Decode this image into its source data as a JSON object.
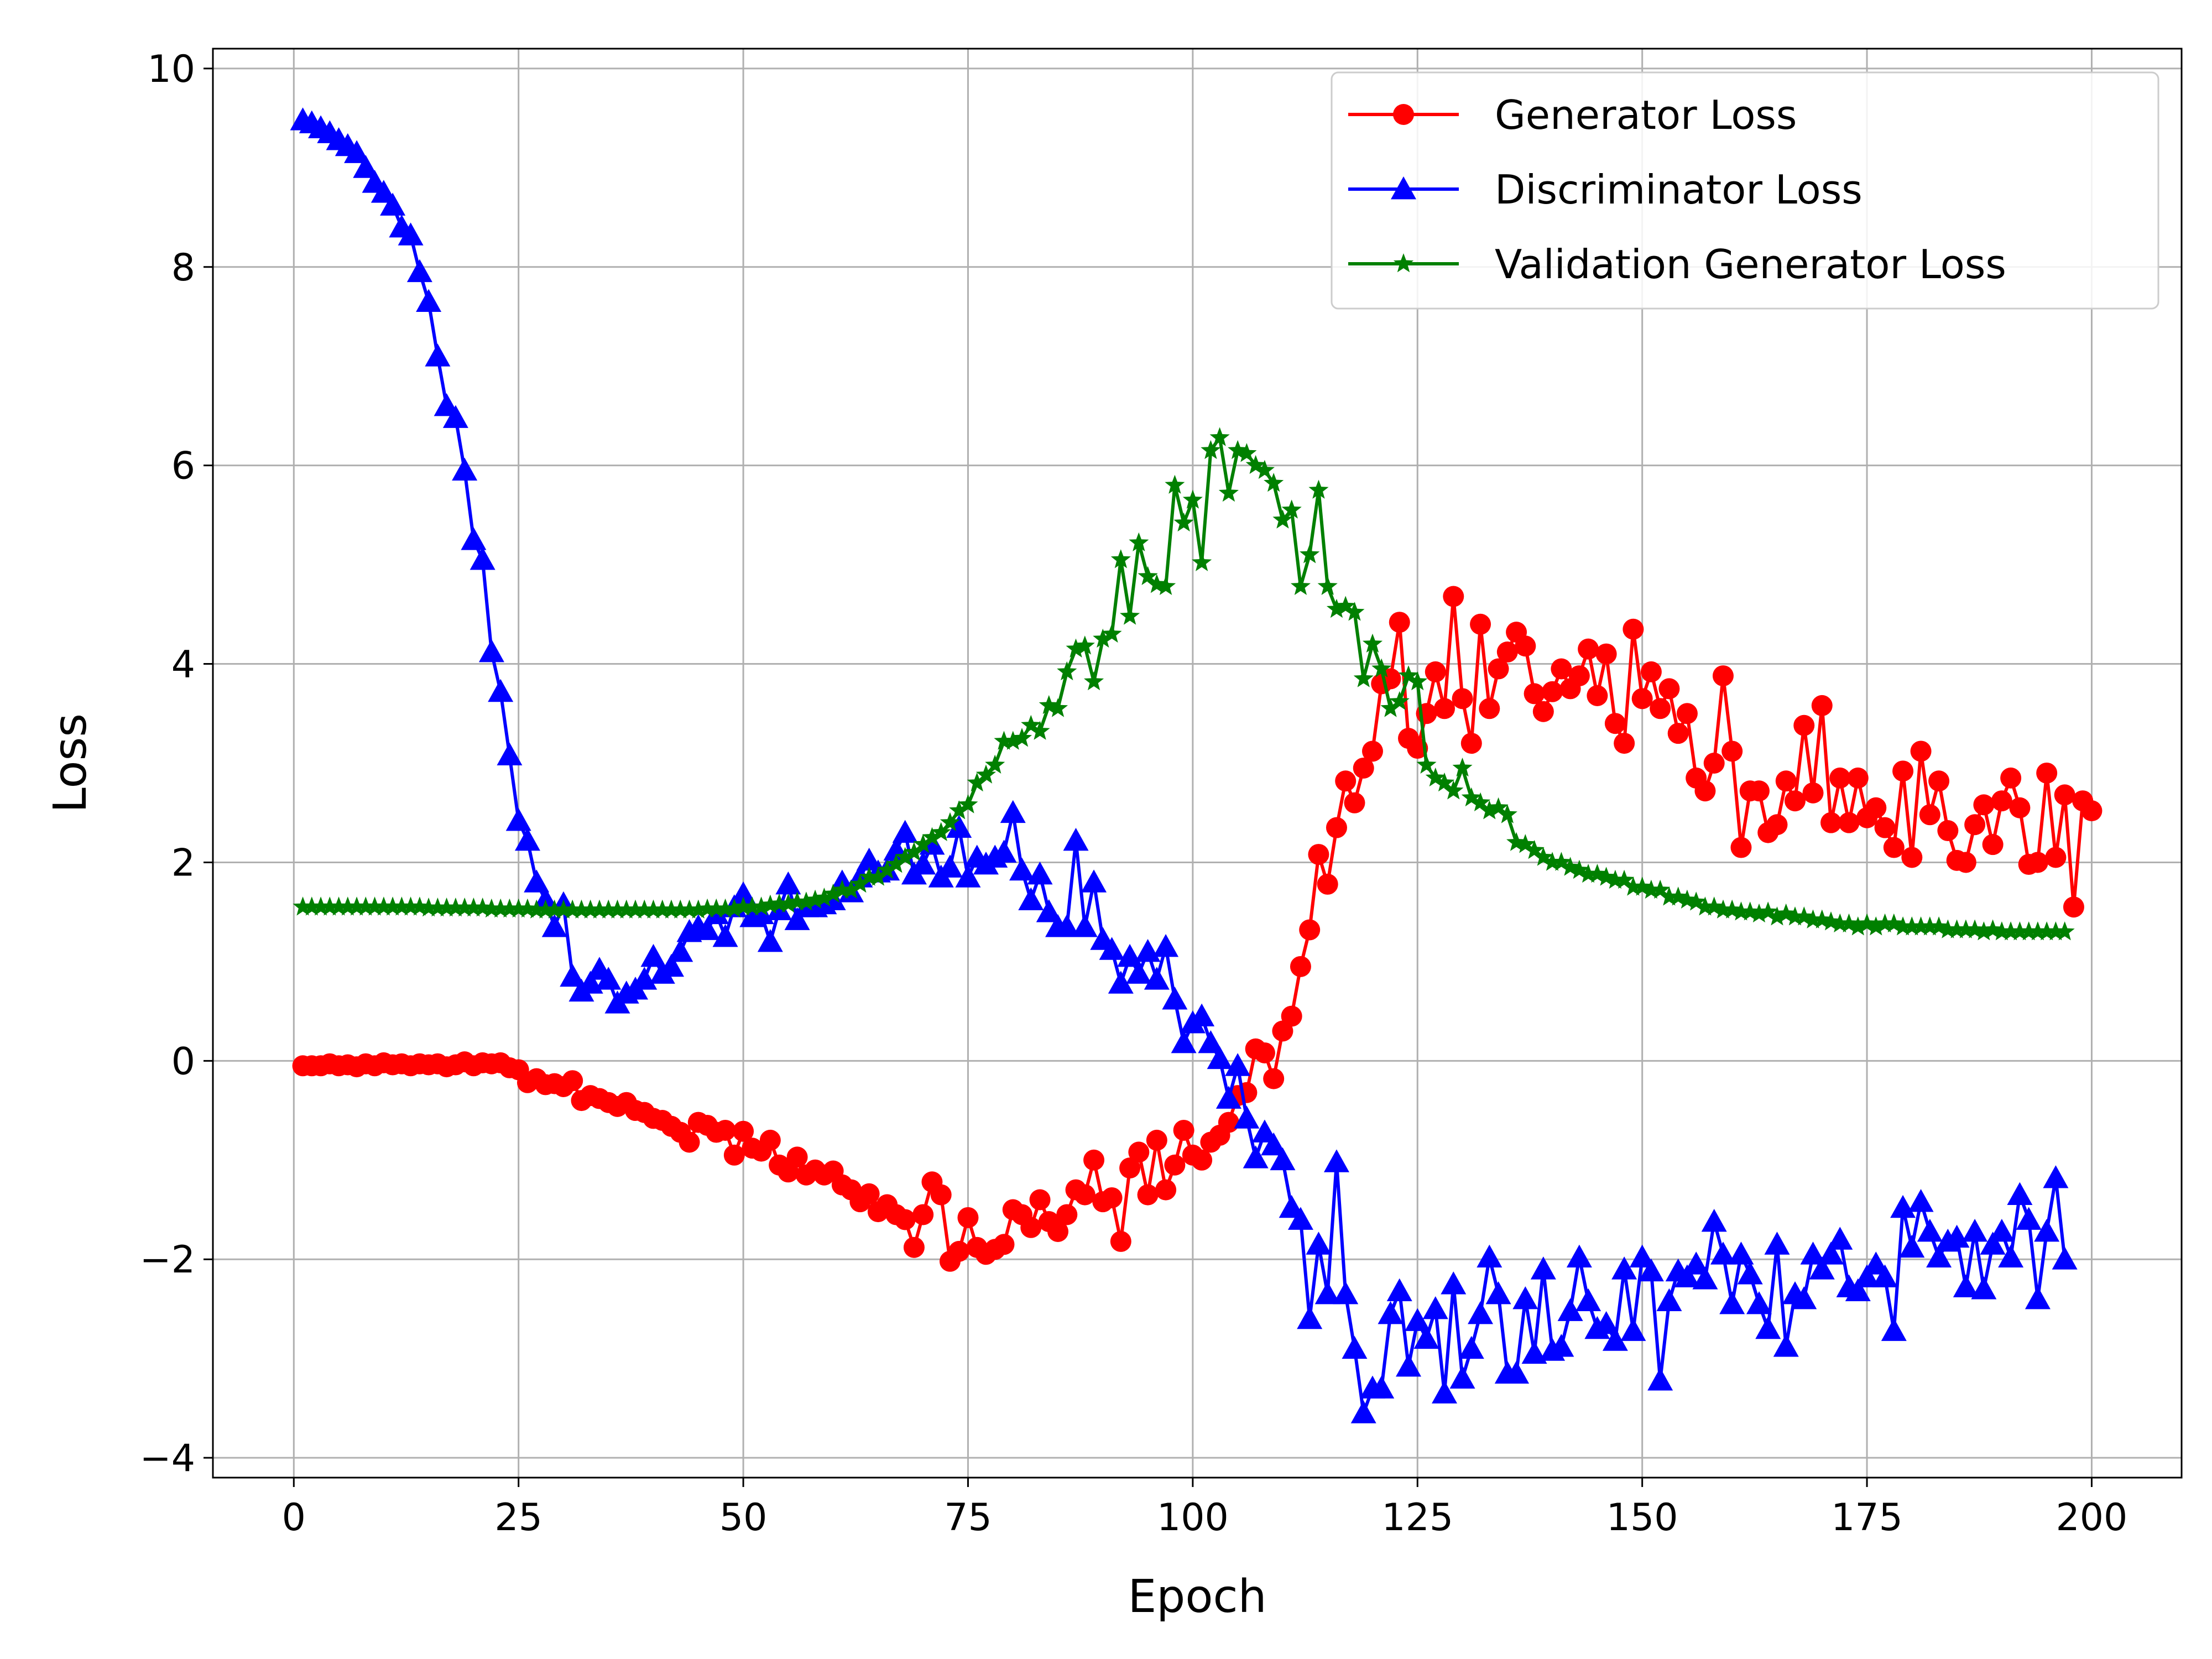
{
  "chart_data": {
    "type": "line",
    "title": "",
    "xlabel": "Epoch",
    "ylabel": "Loss",
    "xlim": [
      -9,
      210
    ],
    "ylim": [
      -4.2,
      10.2
    ],
    "xticks": [
      0,
      25,
      50,
      75,
      100,
      125,
      150,
      175,
      200
    ],
    "yticks": [
      -4,
      -2,
      0,
      2,
      4,
      6,
      8,
      10
    ],
    "grid": true,
    "legend_position": "top-right",
    "series": [
      {
        "name": "Generator Loss",
        "color": "#ff0000",
        "marker": "circle",
        "y": [
          -0.05,
          -0.05,
          -0.05,
          -0.03,
          -0.05,
          -0.04,
          -0.06,
          -0.03,
          -0.05,
          -0.02,
          -0.04,
          -0.03,
          -0.05,
          -0.03,
          -0.04,
          -0.03,
          -0.06,
          -0.04,
          -0.01,
          -0.05,
          -0.02,
          -0.03,
          -0.02,
          -0.07,
          -0.09,
          -0.22,
          -0.18,
          -0.24,
          -0.23,
          -0.26,
          -0.2,
          -0.4,
          -0.35,
          -0.38,
          -0.42,
          -0.46,
          -0.42,
          -0.5,
          -0.52,
          -0.58,
          -0.6,
          -0.66,
          -0.72,
          -0.82,
          -0.62,
          -0.65,
          -0.72,
          -0.7,
          -0.95,
          -0.71,
          -0.88,
          -0.91,
          -0.8,
          -1.05,
          -1.12,
          -0.97,
          -1.15,
          -1.1,
          -1.15,
          -1.11,
          -1.25,
          -1.3,
          -1.42,
          -1.34,
          -1.52,
          -1.45,
          -1.55,
          -1.6,
          -1.88,
          -1.55,
          -1.22,
          -1.35,
          -2.02,
          -1.92,
          -1.58,
          -1.88,
          -1.95,
          -1.9,
          -1.85,
          -1.5,
          -1.55,
          -1.68,
          -1.4,
          -1.62,
          -1.72,
          -1.55,
          -1.3,
          -1.35,
          -1.0,
          -1.42,
          -1.38,
          -1.82,
          -1.08,
          -0.92,
          -1.35,
          -0.8,
          -1.3,
          -1.05,
          -0.7,
          -0.95,
          -1.0,
          -0.82,
          -0.75,
          -0.62,
          -0.35,
          -0.32,
          0.12,
          0.08,
          -0.18,
          0.3,
          0.45,
          0.95,
          1.32,
          2.08,
          1.78,
          2.35,
          2.82,
          2.6,
          2.95,
          3.12,
          3.8,
          3.85,
          4.42,
          3.25,
          3.15,
          3.5,
          3.92,
          3.55,
          4.68,
          3.65,
          3.2,
          4.4,
          3.55,
          3.95,
          4.12,
          4.32,
          4.18,
          3.7,
          3.52,
          3.72,
          3.95,
          3.75,
          3.88,
          4.15,
          3.68,
          4.1,
          3.4,
          3.2,
          4.35,
          3.65,
          3.92,
          3.55,
          3.75,
          3.3,
          3.5,
          2.85,
          2.72,
          3.0,
          3.88,
          3.12,
          2.15,
          2.72,
          2.72,
          2.3,
          2.38,
          2.82,
          2.62,
          3.38,
          2.7,
          3.58,
          2.4,
          2.85,
          2.4,
          2.85,
          2.45,
          2.55,
          2.35,
          2.15,
          2.92,
          2.05,
          3.12,
          2.48,
          2.82,
          2.32,
          2.02,
          2.0,
          2.38,
          2.58,
          2.18,
          2.62,
          2.85,
          2.55,
          1.98,
          2.0,
          2.9,
          2.05,
          2.68,
          1.55,
          2.62,
          2.52
        ]
      },
      {
        "name": "Discriminator Loss",
        "color": "#0000ff",
        "marker": "triangle",
        "y": [
          9.48,
          9.45,
          9.4,
          9.35,
          9.28,
          9.22,
          9.15,
          9.0,
          8.85,
          8.75,
          8.62,
          8.4,
          8.32,
          7.95,
          7.65,
          7.1,
          6.6,
          6.48,
          5.95,
          5.25,
          5.05,
          4.12,
          3.72,
          3.08,
          2.42,
          2.22,
          1.8,
          1.62,
          1.35,
          1.58,
          0.85,
          0.7,
          0.78,
          0.92,
          0.82,
          0.58,
          0.68,
          0.72,
          0.82,
          1.05,
          0.88,
          0.95,
          1.1,
          1.3,
          1.35,
          1.32,
          1.48,
          1.25,
          1.55,
          1.68,
          1.45,
          1.48,
          1.2,
          1.52,
          1.78,
          1.42,
          1.55,
          1.55,
          1.58,
          1.62,
          1.8,
          1.7,
          1.85,
          2.02,
          1.9,
          1.92,
          2.12,
          2.3,
          1.88,
          1.98,
          2.18,
          1.85,
          1.95,
          2.35,
          1.85,
          2.05,
          1.98,
          2.05,
          2.1,
          2.5,
          1.92,
          1.62,
          1.88,
          1.5,
          1.35,
          1.35,
          2.22,
          1.35,
          1.8,
          1.22,
          1.12,
          0.78,
          1.05,
          0.88,
          1.1,
          0.82,
          1.15,
          0.62,
          0.18,
          0.38,
          0.45,
          0.18,
          0.02,
          -0.38,
          -0.05,
          -0.58,
          -0.98,
          -0.72,
          -0.85,
          -1.0,
          -1.48,
          -1.6,
          -2.6,
          -1.85,
          -2.35,
          -1.02,
          -2.35,
          -2.9,
          -3.55,
          -3.3,
          -3.3,
          -2.55,
          -2.32,
          -3.08,
          -2.62,
          -2.8,
          -2.5,
          -3.35,
          -2.25,
          -3.2,
          -2.9,
          -2.55,
          -1.98,
          -2.35,
          -3.15,
          -3.15,
          -2.4,
          -2.95,
          -2.1,
          -2.92,
          -2.88,
          -2.52,
          -1.98,
          -2.42,
          -2.7,
          -2.65,
          -2.82,
          -2.1,
          -2.72,
          -1.98,
          -2.12,
          -3.22,
          -2.42,
          -2.12,
          -2.18,
          -2.05,
          -2.2,
          -1.62,
          -1.95,
          -2.45,
          -1.95,
          -2.15,
          -2.45,
          -2.7,
          -1.85,
          -2.88,
          -2.35,
          -2.4,
          -1.95,
          -2.1,
          -1.95,
          -1.8,
          -2.28,
          -2.32,
          -2.18,
          -2.05,
          -2.18,
          -2.72,
          -1.48,
          -1.88,
          -1.42,
          -1.72,
          -1.98,
          -1.82,
          -1.78,
          -2.28,
          -1.72,
          -2.3,
          -1.85,
          -1.72,
          -1.98,
          -1.35,
          -1.6,
          -2.4,
          -1.72,
          -1.18,
          -2.0
        ]
      },
      {
        "name": "Validation Generator Loss",
        "color": "#008000",
        "marker": "star",
        "y": [
          1.55,
          1.55,
          1.55,
          1.55,
          1.55,
          1.55,
          1.55,
          1.55,
          1.55,
          1.55,
          1.55,
          1.55,
          1.55,
          1.55,
          1.54,
          1.54,
          1.54,
          1.54,
          1.54,
          1.54,
          1.54,
          1.53,
          1.53,
          1.53,
          1.53,
          1.53,
          1.52,
          1.52,
          1.52,
          1.52,
          1.52,
          1.52,
          1.52,
          1.52,
          1.52,
          1.52,
          1.52,
          1.52,
          1.52,
          1.52,
          1.52,
          1.52,
          1.52,
          1.52,
          1.52,
          1.53,
          1.53,
          1.53,
          1.53,
          1.55,
          1.55,
          1.55,
          1.57,
          1.58,
          1.58,
          1.6,
          1.6,
          1.62,
          1.64,
          1.68,
          1.72,
          1.72,
          1.78,
          1.85,
          1.85,
          1.92,
          1.98,
          2.05,
          2.1,
          2.18,
          2.25,
          2.3,
          2.4,
          2.52,
          2.58,
          2.8,
          2.88,
          2.98,
          3.22,
          3.22,
          3.25,
          3.38,
          3.32,
          3.58,
          3.55,
          3.92,
          4.15,
          4.18,
          3.82,
          4.25,
          4.3,
          5.05,
          4.48,
          5.22,
          4.88,
          4.8,
          4.78,
          5.8,
          5.42,
          5.65,
          5.02,
          6.15,
          6.28,
          5.72,
          6.15,
          6.12,
          6.0,
          5.95,
          5.82,
          5.45,
          5.55,
          4.78,
          5.1,
          5.75,
          4.78,
          4.55,
          4.58,
          4.52,
          3.85,
          4.2,
          3.95,
          3.55,
          3.62,
          3.88,
          3.82,
          2.98,
          2.85,
          2.8,
          2.72,
          2.95,
          2.65,
          2.6,
          2.52,
          2.55,
          2.48,
          2.2,
          2.18,
          2.12,
          2.05,
          2.0,
          2.0,
          1.95,
          1.92,
          1.88,
          1.88,
          1.85,
          1.82,
          1.82,
          1.75,
          1.75,
          1.72,
          1.72,
          1.65,
          1.65,
          1.62,
          1.6,
          1.55,
          1.55,
          1.52,
          1.52,
          1.5,
          1.5,
          1.48,
          1.5,
          1.45,
          1.48,
          1.45,
          1.45,
          1.42,
          1.42,
          1.4,
          1.38,
          1.38,
          1.35,
          1.38,
          1.35,
          1.38,
          1.38,
          1.35,
          1.35,
          1.35,
          1.35,
          1.35,
          1.32,
          1.32,
          1.32,
          1.32,
          1.3,
          1.32,
          1.3,
          1.3,
          1.3,
          1.3,
          1.3,
          1.3,
          1.3,
          1.3
        ]
      }
    ]
  }
}
